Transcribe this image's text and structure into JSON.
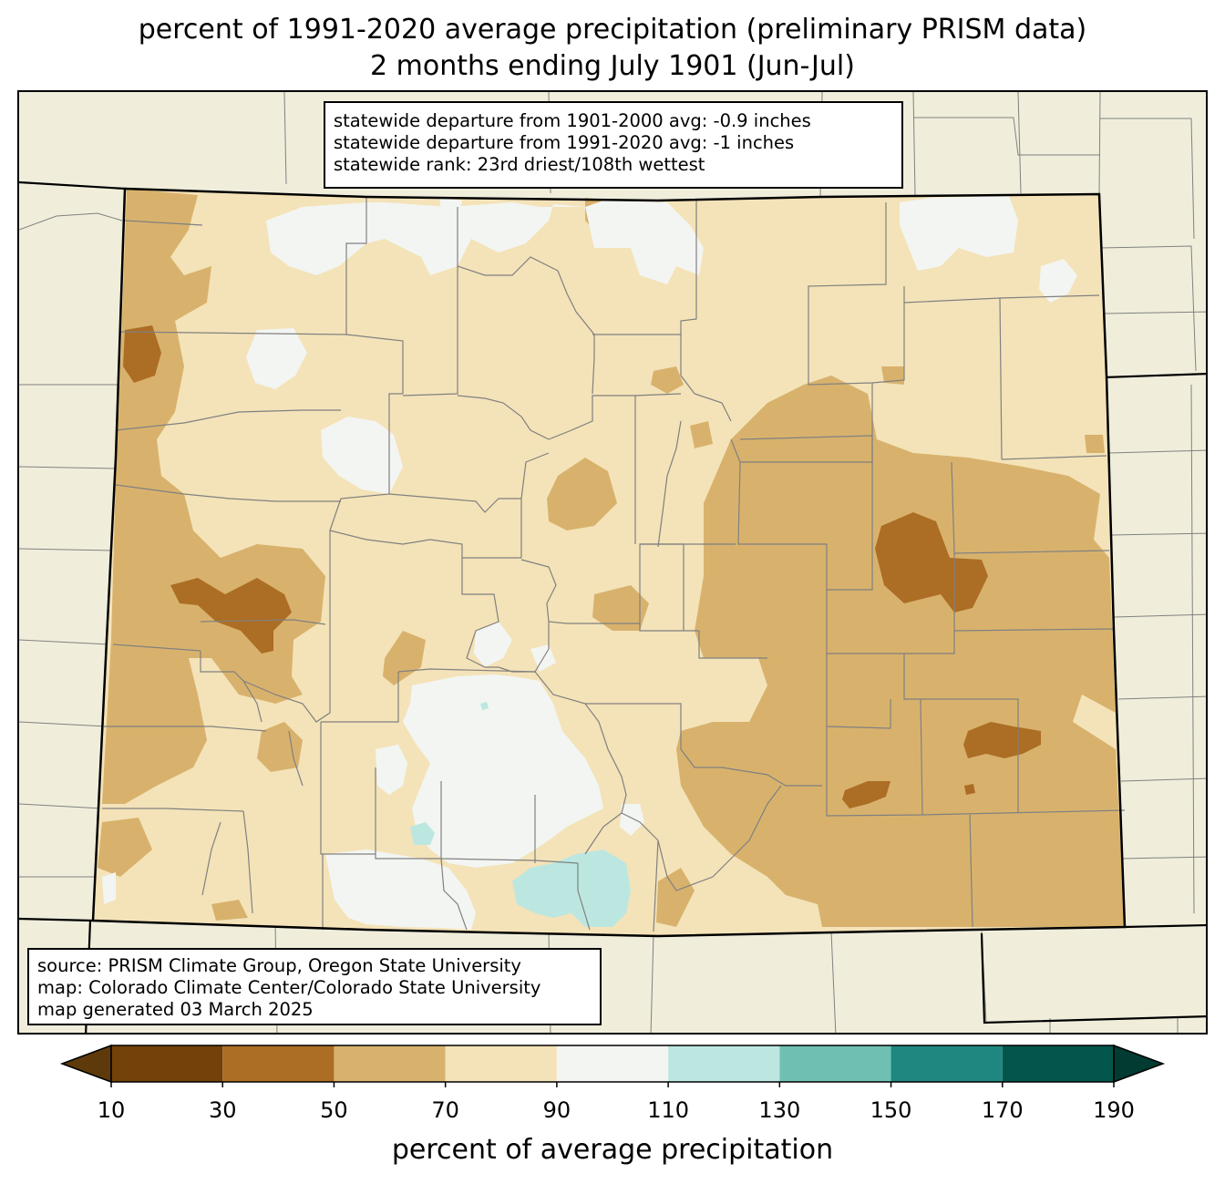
{
  "title": {
    "line1": "percent of 1991-2020 average precipitation (preliminary PRISM data)",
    "line2": "2 months ending July 1901 (Jun-Jul)"
  },
  "stats": {
    "line1": "statewide departure from 1901-2000 avg: -0.9 inches",
    "line2": "statewide departure from 1991-2020 avg: -1 inches",
    "line3": "statewide rank: 23rd driest/108th wettest"
  },
  "source": {
    "line1": "source: PRISM Climate Group, Oregon State University",
    "line2": "map: Colorado Climate Center/Colorado State University",
    "line3": "map generated 03 March 2025"
  },
  "colorbar": {
    "label": "percent of average precipitation",
    "ticks": [
      "10",
      "30",
      "50",
      "70",
      "90",
      "110",
      "130",
      "150",
      "170",
      "190"
    ],
    "colors": [
      "#5e3a0b",
      "#734109",
      "#ac6d24",
      "#d8b26d",
      "#f4e3b8",
      "#f3f5f3",
      "#bce7e1",
      "#6fc0b3",
      "#208780",
      "#02564c",
      "#013b31"
    ]
  },
  "colors": {
    "background": "#f0eedb",
    "county_lines": "#808080",
    "state_lines": "#000000"
  }
}
